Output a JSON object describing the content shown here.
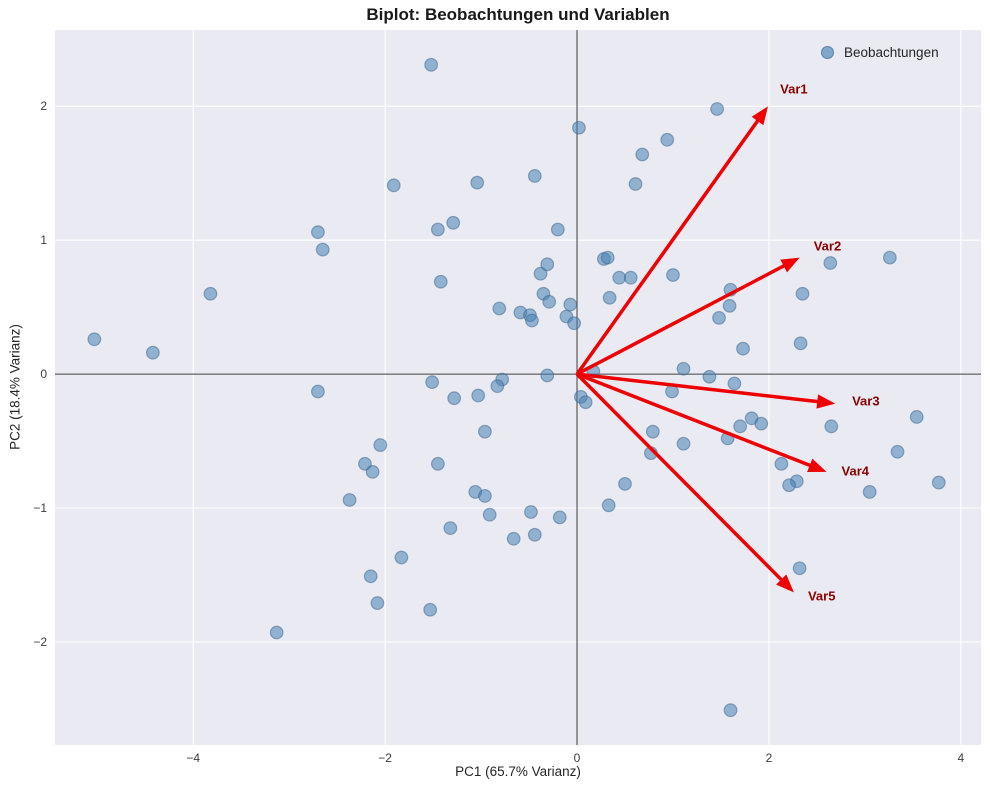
{
  "title": "Biplot: Beobachtungen und Variablen",
  "legend": {
    "label": "Beobachtungen"
  },
  "chart_data": {
    "type": "scatter",
    "title": "Biplot: Beobachtungen und Variablen",
    "xlabel": "PC1 (65.7% Varianz)",
    "ylabel": "PC2 (18.4% Varianz)",
    "xlim": [
      -5.44,
      4.21
    ],
    "ylim": [
      -2.77,
      2.57
    ],
    "xticks": [
      -4,
      -2,
      0,
      2,
      4
    ],
    "yticks": [
      -2,
      -1,
      0,
      1,
      2
    ],
    "grid": true,
    "legend_position": "upper right",
    "series": [
      {
        "name": "Beobachtungen",
        "points": [
          [
            -5.03,
            0.26
          ],
          [
            -4.42,
            0.16
          ],
          [
            -3.82,
            0.6
          ],
          [
            -2.7,
            1.06
          ],
          [
            -2.65,
            0.93
          ],
          [
            -1.91,
            1.41
          ],
          [
            -1.52,
            2.31
          ],
          [
            -1.45,
            1.08
          ],
          [
            -1.29,
            1.13
          ],
          [
            -1.42,
            0.69
          ],
          [
            -1.04,
            1.43
          ],
          [
            -0.44,
            1.48
          ],
          [
            -0.2,
            1.08
          ],
          [
            -0.81,
            0.49
          ],
          [
            -0.59,
            0.46
          ],
          [
            -0.49,
            0.44
          ],
          [
            -0.47,
            0.4
          ],
          [
            -0.38,
            0.75
          ],
          [
            -0.31,
            0.82
          ],
          [
            -0.35,
            0.6
          ],
          [
            -0.29,
            0.54
          ],
          [
            -0.11,
            0.43
          ],
          [
            -0.07,
            0.52
          ],
          [
            -0.03,
            0.38
          ],
          [
            0.02,
            1.84
          ],
          [
            0.68,
            1.64
          ],
          [
            0.94,
            1.75
          ],
          [
            1.46,
            1.98
          ],
          [
            0.61,
            1.42
          ],
          [
            0.28,
            0.86
          ],
          [
            0.32,
            0.87
          ],
          [
            0.44,
            0.72
          ],
          [
            0.56,
            0.72
          ],
          [
            1.0,
            0.74
          ],
          [
            0.34,
            0.57
          ],
          [
            1.6,
            0.63
          ],
          [
            1.59,
            0.51
          ],
          [
            1.48,
            0.42
          ],
          [
            2.35,
            0.6
          ],
          [
            2.64,
            0.83
          ],
          [
            3.26,
            0.87
          ],
          [
            2.33,
            0.23
          ],
          [
            1.73,
            0.19
          ],
          [
            1.11,
            0.04
          ],
          [
            0.17,
            0.02
          ],
          [
            -0.31,
            -0.01
          ],
          [
            0.04,
            -0.17
          ],
          [
            0.09,
            -0.21
          ],
          [
            -2.7,
            -0.13
          ],
          [
            -1.51,
            -0.06
          ],
          [
            -0.78,
            -0.04
          ],
          [
            -0.83,
            -0.09
          ],
          [
            -1.28,
            -0.18
          ],
          [
            -1.03,
            -0.16
          ],
          [
            -2.05,
            -0.53
          ],
          [
            -0.96,
            -0.43
          ],
          [
            -2.21,
            -0.67
          ],
          [
            -2.13,
            -0.73
          ],
          [
            -1.45,
            -0.67
          ],
          [
            -2.37,
            -0.94
          ],
          [
            -1.06,
            -0.88
          ],
          [
            -0.96,
            -0.91
          ],
          [
            -0.91,
            -1.05
          ],
          [
            -0.48,
            -1.03
          ],
          [
            -0.18,
            -1.07
          ],
          [
            -1.32,
            -1.15
          ],
          [
            -0.66,
            -1.23
          ],
          [
            -0.44,
            -1.2
          ],
          [
            -1.83,
            -1.37
          ],
          [
            -2.15,
            -1.51
          ],
          [
            -2.08,
            -1.71
          ],
          [
            -1.53,
            -1.76
          ],
          [
            -3.13,
            -1.93
          ],
          [
            1.38,
            -0.02
          ],
          [
            1.64,
            -0.07
          ],
          [
            0.99,
            -0.13
          ],
          [
            0.79,
            -0.43
          ],
          [
            0.77,
            -0.59
          ],
          [
            1.11,
            -0.52
          ],
          [
            1.57,
            -0.48
          ],
          [
            1.7,
            -0.39
          ],
          [
            1.82,
            -0.33
          ],
          [
            1.92,
            -0.37
          ],
          [
            2.65,
            -0.39
          ],
          [
            3.54,
            -0.32
          ],
          [
            3.34,
            -0.58
          ],
          [
            2.13,
            -0.67
          ],
          [
            2.29,
            -0.8
          ],
          [
            2.21,
            -0.83
          ],
          [
            3.05,
            -0.88
          ],
          [
            3.77,
            -0.81
          ],
          [
            0.5,
            -0.82
          ],
          [
            0.33,
            -0.98
          ],
          [
            2.32,
            -1.45
          ],
          [
            1.6,
            -2.51
          ]
        ]
      }
    ],
    "loading_arrows": [
      {
        "label": "Var1",
        "tip": [
          1.99,
          2.0
        ],
        "label_pos": [
          2.26,
          2.13
        ]
      },
      {
        "label": "Var2",
        "tip": [
          2.32,
          0.87
        ],
        "label_pos": [
          2.61,
          0.96
        ]
      },
      {
        "label": "Var3",
        "tip": [
          2.69,
          -0.22
        ],
        "label_pos": [
          3.01,
          -0.2
        ]
      },
      {
        "label": "Var4",
        "tip": [
          2.6,
          -0.73
        ],
        "label_pos": [
          2.9,
          -0.72
        ]
      },
      {
        "label": "Var5",
        "tip": [
          2.26,
          -1.63
        ],
        "label_pos": [
          2.55,
          -1.66
        ]
      }
    ],
    "colors": {
      "plot_bg": "#eaeaf2",
      "grid": "#ffffff",
      "zero_line": "#3d3d3d",
      "point_fill": "#4682b4",
      "point_edge": "#39648c",
      "arrow": "#ee0000",
      "arrow_label": "#8b0000",
      "text": "#262626"
    }
  }
}
